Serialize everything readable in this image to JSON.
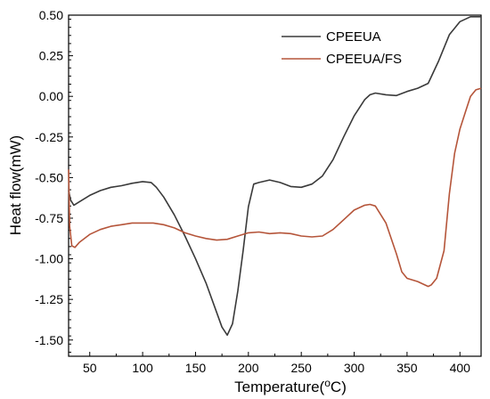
{
  "chart_data": {
    "type": "line",
    "xlabel": "Temperature(",
    "xlabel_unit_sup": "o",
    "xlabel_unit": "C)",
    "ylabel": "Heat flow(mW)",
    "xlim": [
      30,
      420
    ],
    "ylim": [
      -1.6,
      0.5
    ],
    "xticks": [
      50,
      100,
      150,
      200,
      250,
      300,
      350,
      400
    ],
    "xtick_labels": [
      "50",
      "100",
      "150",
      "200",
      "250",
      "300",
      "350",
      "400"
    ],
    "yticks": [
      0.5,
      0.25,
      0.0,
      -0.25,
      -0.5,
      -0.75,
      -1.0,
      -1.25,
      -1.5
    ],
    "ytick_labels": [
      "0.50",
      "0.25",
      "0.00",
      "-0.25",
      "-0.50",
      "-0.75",
      "-1.00",
      "-1.25",
      "-1.50"
    ],
    "grid": false,
    "legend_position": "top-right",
    "series": [
      {
        "name": "CPEEUA",
        "color": "#3a3a3a",
        "points": [
          [
            30,
            -0.58
          ],
          [
            32,
            -0.64
          ],
          [
            35,
            -0.67
          ],
          [
            40,
            -0.65
          ],
          [
            50,
            -0.61
          ],
          [
            60,
            -0.58
          ],
          [
            70,
            -0.56
          ],
          [
            80,
            -0.55
          ],
          [
            90,
            -0.535
          ],
          [
            100,
            -0.525
          ],
          [
            108,
            -0.53
          ],
          [
            113,
            -0.56
          ],
          [
            120,
            -0.62
          ],
          [
            130,
            -0.73
          ],
          [
            140,
            -0.86
          ],
          [
            150,
            -1.0
          ],
          [
            160,
            -1.15
          ],
          [
            170,
            -1.33
          ],
          [
            175,
            -1.42
          ],
          [
            180,
            -1.47
          ],
          [
            185,
            -1.4
          ],
          [
            190,
            -1.2
          ],
          [
            195,
            -0.95
          ],
          [
            200,
            -0.68
          ],
          [
            205,
            -0.54
          ],
          [
            210,
            -0.53
          ],
          [
            220,
            -0.515
          ],
          [
            230,
            -0.53
          ],
          [
            240,
            -0.555
          ],
          [
            250,
            -0.56
          ],
          [
            260,
            -0.54
          ],
          [
            270,
            -0.49
          ],
          [
            280,
            -0.39
          ],
          [
            290,
            -0.25
          ],
          [
            300,
            -0.12
          ],
          [
            310,
            -0.02
          ],
          [
            315,
            0.01
          ],
          [
            320,
            0.02
          ],
          [
            330,
            0.01
          ],
          [
            340,
            0.005
          ],
          [
            350,
            0.03
          ],
          [
            360,
            0.05
          ],
          [
            370,
            0.08
          ],
          [
            380,
            0.22
          ],
          [
            390,
            0.38
          ],
          [
            400,
            0.46
          ],
          [
            410,
            0.49
          ],
          [
            420,
            0.49
          ]
        ]
      },
      {
        "name": "CPEEUA/FS",
        "color": "#b5553a",
        "points": [
          [
            30,
            -0.45
          ],
          [
            31,
            -0.8
          ],
          [
            33,
            -0.92
          ],
          [
            36,
            -0.93
          ],
          [
            40,
            -0.9
          ],
          [
            50,
            -0.85
          ],
          [
            60,
            -0.82
          ],
          [
            70,
            -0.8
          ],
          [
            80,
            -0.79
          ],
          [
            90,
            -0.78
          ],
          [
            100,
            -0.78
          ],
          [
            110,
            -0.78
          ],
          [
            120,
            -0.79
          ],
          [
            130,
            -0.81
          ],
          [
            140,
            -0.84
          ],
          [
            150,
            -0.86
          ],
          [
            160,
            -0.875
          ],
          [
            170,
            -0.885
          ],
          [
            180,
            -0.88
          ],
          [
            190,
            -0.86
          ],
          [
            200,
            -0.84
          ],
          [
            210,
            -0.835
          ],
          [
            220,
            -0.845
          ],
          [
            230,
            -0.84
          ],
          [
            240,
            -0.845
          ],
          [
            250,
            -0.86
          ],
          [
            260,
            -0.865
          ],
          [
            270,
            -0.86
          ],
          [
            280,
            -0.82
          ],
          [
            290,
            -0.76
          ],
          [
            300,
            -0.7
          ],
          [
            310,
            -0.67
          ],
          [
            315,
            -0.665
          ],
          [
            320,
            -0.675
          ],
          [
            330,
            -0.78
          ],
          [
            340,
            -0.97
          ],
          [
            345,
            -1.08
          ],
          [
            350,
            -1.12
          ],
          [
            360,
            -1.14
          ],
          [
            370,
            -1.17
          ],
          [
            373,
            -1.16
          ],
          [
            378,
            -1.12
          ],
          [
            385,
            -0.95
          ],
          [
            390,
            -0.6
          ],
          [
            395,
            -0.35
          ],
          [
            400,
            -0.2
          ],
          [
            405,
            -0.1
          ],
          [
            410,
            0.0
          ],
          [
            415,
            0.04
          ],
          [
            420,
            0.05
          ]
        ]
      }
    ]
  }
}
